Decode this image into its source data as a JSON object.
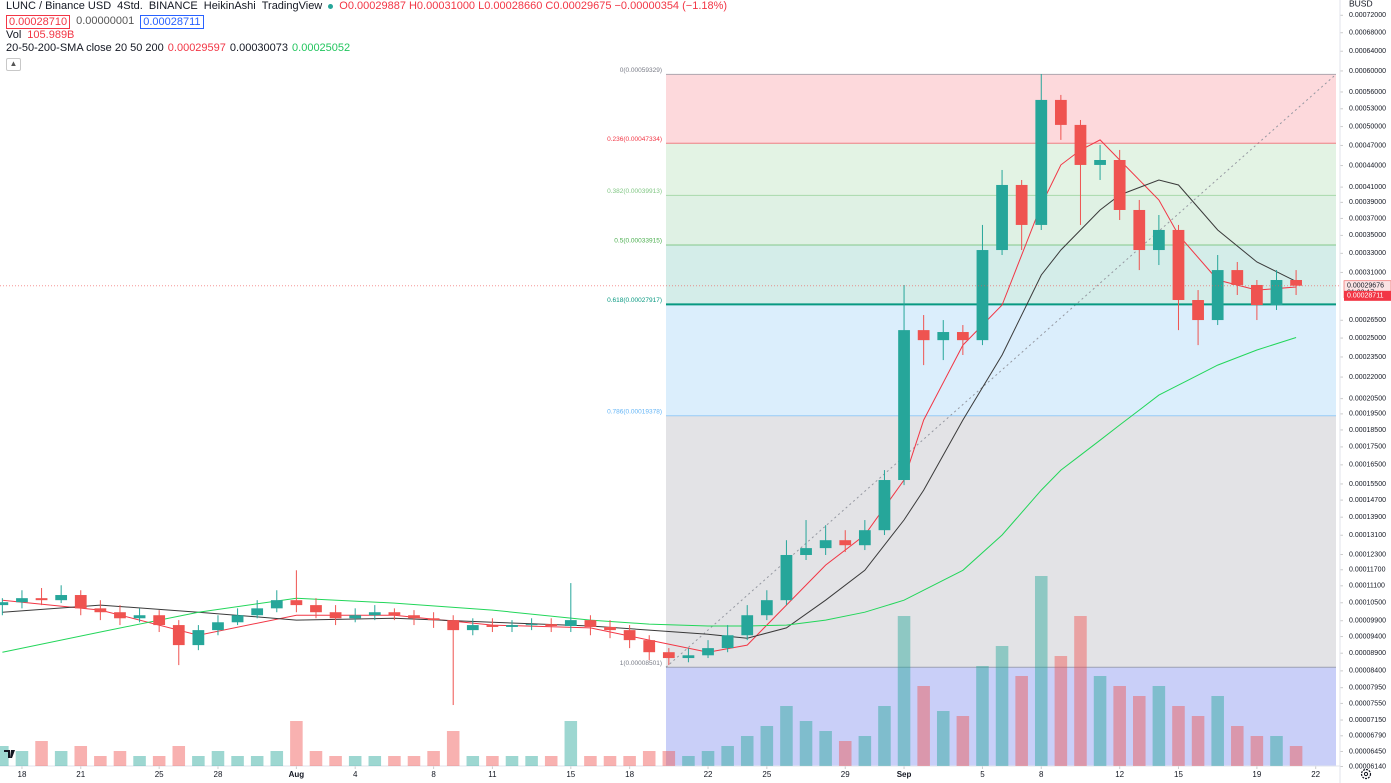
{
  "header": {
    "symbol": "LUNC / Binance USD",
    "interval": "4Std.",
    "exchange": "BINANCE",
    "chart_style": "HeikinAshi",
    "source": "TradingView",
    "ohlc": "O0.00029887 H0.00031000 L0.00028660 C0.00029675 −0.00000354 (−1.18%)",
    "sell": "0.00028710",
    "spread": "0.00000001",
    "buy": "0.00028711",
    "volume_label": "Vol",
    "volume_value": "105.989B",
    "indicator": "20-50-200-SMA close 20 50 200",
    "sma_values": [
      "0.00029597",
      "0.00030073",
      "0.00025052"
    ]
  },
  "chart_data": {
    "type": "candlestick",
    "currency": "BUSD",
    "log_scale": true,
    "grid": false,
    "up_color": "#26a69a",
    "down_color": "#ef5350",
    "ylim": [
      6.15e-05,
      0.000757
    ],
    "yticks": [
      {
        "value": 0.00072,
        "label": "0.00072000"
      },
      {
        "value": 0.00068,
        "label": "0.00068000"
      },
      {
        "value": 0.00064,
        "label": "0.00064000"
      },
      {
        "value": 0.0006,
        "label": "0.00060000"
      },
      {
        "value": 0.00056,
        "label": "0.00056000"
      },
      {
        "value": 0.00053,
        "label": "0.00053000"
      },
      {
        "value": 0.0005,
        "label": "0.00050000"
      },
      {
        "value": 0.00047,
        "label": "0.00047000"
      },
      {
        "value": 0.00044,
        "label": "0.00044000"
      },
      {
        "value": 0.00041,
        "label": "0.00041000"
      },
      {
        "value": 0.00039,
        "label": "0.00039000"
      },
      {
        "value": 0.00037,
        "label": "0.00037000"
      },
      {
        "value": 0.00035,
        "label": "0.00035000"
      },
      {
        "value": 0.00033,
        "label": "0.00033000"
      },
      {
        "value": 0.00031,
        "label": "0.00031000"
      },
      {
        "value": 0.000265,
        "label": "0.00026500"
      },
      {
        "value": 0.00025,
        "label": "0.00025000"
      },
      {
        "value": 0.000235,
        "label": "0.00023500"
      },
      {
        "value": 0.00022,
        "label": "0.00022000"
      },
      {
        "value": 0.000205,
        "label": "0.00020500"
      },
      {
        "value": 0.000195,
        "label": "0.00019500"
      },
      {
        "value": 0.000185,
        "label": "0.00018500"
      },
      {
        "value": 0.000175,
        "label": "0.00017500"
      },
      {
        "value": 0.000165,
        "label": "0.00016500"
      },
      {
        "value": 0.000155,
        "label": "0.00015500"
      },
      {
        "value": 0.000147,
        "label": "0.00014700"
      },
      {
        "value": 0.000139,
        "label": "0.00013900"
      },
      {
        "value": 0.000131,
        "label": "0.00013100"
      },
      {
        "value": 0.000123,
        "label": "0.00012300"
      },
      {
        "value": 0.000117,
        "label": "0.00011700"
      },
      {
        "value": 0.000111,
        "label": "0.00011100"
      },
      {
        "value": 0.000105,
        "label": "0.00010500"
      },
      {
        "value": 9.9e-05,
        "label": "0.00009900"
      },
      {
        "value": 9.4e-05,
        "label": "0.00009400"
      },
      {
        "value": 8.9e-05,
        "label": "0.00008900"
      },
      {
        "value": 8.4e-05,
        "label": "0.00008400"
      },
      {
        "value": 7.95e-05,
        "label": "0.00007950"
      },
      {
        "value": 7.55e-05,
        "label": "0.00007550"
      },
      {
        "value": 7.15e-05,
        "label": "0.00007150"
      },
      {
        "value": 6.79e-05,
        "label": "0.00006790"
      },
      {
        "value": 6.45e-05,
        "label": "0.00006450"
      },
      {
        "value": 6.14e-05,
        "label": "0.00006140"
      }
    ],
    "xlim": [
      -0.12,
      68.24
    ],
    "xticks": [
      {
        "value": 1,
        "label": "18"
      },
      {
        "value": 4,
        "label": "21"
      },
      {
        "value": 8,
        "label": "25"
      },
      {
        "value": 11,
        "label": "28"
      },
      {
        "value": 15,
        "label": "Aug"
      },
      {
        "value": 18,
        "label": "4"
      },
      {
        "value": 22,
        "label": "8"
      },
      {
        "value": 25,
        "label": "11"
      },
      {
        "value": 29,
        "label": "15"
      },
      {
        "value": 32,
        "label": "18"
      },
      {
        "value": 36,
        "label": "22"
      },
      {
        "value": 39,
        "label": "25"
      },
      {
        "value": 43,
        "label": "29"
      },
      {
        "value": 46,
        "label": "Sep"
      },
      {
        "value": 50,
        "label": "5"
      },
      {
        "value": 53,
        "label": "8"
      },
      {
        "value": 57,
        "label": "12"
      },
      {
        "value": 60,
        "label": "15"
      },
      {
        "value": 64,
        "label": "19"
      },
      {
        "value": 67,
        "label": "22"
      }
    ],
    "candles": {
      "open": [
        0.0001042,
        0.0001052,
        0.0001066,
        0.0001059,
        0.0001077,
        0.0001031,
        0.0001018,
        9.98e-05,
        0.0001008,
        9.76e-05,
        9.14e-05,
        9.6e-05,
        9.85e-05,
        0.0001008,
        0.0001031,
        0.0001059,
        0.0001042,
        0.0001018,
        9.98e-05,
        0.0001008,
        0.0001018,
        0.0001008,
        9.98e-05,
        9.92e-05,
        9.6e-05,
        9.76e-05,
        9.7e-05,
        9.76e-05,
        9.79e-05,
        9.73e-05,
        9.92e-05,
        9.7e-05,
        9.6e-05,
        9.29e-05,
        8.93e-05,
        8.76e-05,
        8.84e-05,
        9.05e-05,
        9.44e-05,
        0.0001008,
        0.0001059,
        0.0001228,
        0.0001256,
        0.0001289,
        0.0001268,
        0.0001332,
        0.000157,
        0.0002566,
        0.0002483,
        0.000255,
        0.0002483,
        0.0003336,
        0.0004129,
        0.0003622,
        0.0005456,
        0.0005027,
        0.0004409,
        0.0004481,
        0.0003804,
        0.0003336,
        0.0003563,
        0.0002832,
        0.0002652,
        0.0003124,
        0.0002975,
        0.0002786,
        0.0003024
      ],
      "high": [
        0.0001066,
        0.0001094,
        0.0001102,
        0.0001112,
        0.0001094,
        0.0001059,
        0.0001042,
        0.0001031,
        0.0001025,
        9.92e-05,
        9.76e-05,
        0.0001008,
        0.0001031,
        0.0001059,
        0.0001094,
        0.0001168,
        0.0001066,
        0.0001042,
        0.0001031,
        0.0001042,
        0.0001031,
        0.0001025,
        0.0001018,
        0.0001008,
        9.98e-05,
        9.98e-05,
        9.92e-05,
        9.98e-05,
        9.98e-05,
        0.000112,
        0.0001008,
        9.92e-05,
        9.76e-05,
        9.44e-05,
        9.05e-05,
        9.05e-05,
        9.29e-05,
        9.76e-05,
        0.0001042,
        0.0001094,
        0.0001289,
        0.0001377,
        0.0001354,
        0.0001332,
        0.0001377,
        0.0001622,
        0.0002975,
        0.0002696,
        0.0002652,
        0.0002609,
        0.0003622,
        0.0004337,
        0.0004197,
        0.0005941,
        0.0005546,
        0.0005109,
        0.0004708,
        0.0004631,
        0.0003931,
        0.0003742,
        0.0003622,
        0.0002926,
        0.0003282,
        0.0003208,
        0.0003024,
        0.0003124,
        0.0003124
      ],
      "low": [
        0.0001008,
        0.0001031,
        0.0001042,
        0.0001049,
        0.0001008,
        9.92e-05,
        9.76e-05,
        9.85e-05,
        9.54e-05,
        8.56e-05,
        8.99e-05,
        9.44e-05,
        9.76e-05,
        9.98e-05,
        0.0001018,
        0.0001018,
        9.98e-05,
        9.76e-05,
        9.85e-05,
        9.92e-05,
        9.92e-05,
        9.76e-05,
        9.67e-05,
        7.51e-05,
        9.44e-05,
        9.54e-05,
        9.54e-05,
        9.6e-05,
        9.54e-05,
        9.54e-05,
        9.44e-05,
        9.35e-05,
        9.05e-05,
        8.7e-05,
        8.56e-05,
        8.64e-05,
        8.76e-05,
        8.93e-05,
        9.29e-05,
        9.92e-05,
        0.0001042,
        0.0001208,
        0.0001228,
        0.000124,
        0.0001248,
        0.0001311,
        0.0001544,
        0.0002288,
        0.0002326,
        0.0002365,
        0.0002443,
        0.0003282,
        0.0003336,
        0.0003563,
        0.0004786,
        0.0003622,
        0.0004197,
        0.0003681,
        0.0003124,
        0.0003176,
        0.0002566,
        0.0002443,
        0.0002609,
        0.0002879,
        0.0002652,
        0.0002741,
        0.0002879
      ],
      "close": [
        0.0001052,
        0.0001066,
        0.0001059,
        0.0001077,
        0.0001031,
        0.0001018,
        9.98e-05,
        0.0001008,
        9.76e-05,
        9.14e-05,
        9.6e-05,
        9.85e-05,
        0.0001008,
        0.0001031,
        0.0001059,
        0.0001042,
        0.0001018,
        9.98e-05,
        0.0001008,
        0.0001018,
        0.0001008,
        9.98e-05,
        9.92e-05,
        9.6e-05,
        9.76e-05,
        9.7e-05,
        9.76e-05,
        9.79e-05,
        9.73e-05,
        9.92e-05,
        9.7e-05,
        9.6e-05,
        9.29e-05,
        8.93e-05,
        8.76e-05,
        8.84e-05,
        9.05e-05,
        9.44e-05,
        0.0001008,
        0.0001059,
        0.0001228,
        0.0001256,
        0.0001289,
        0.0001268,
        0.0001332,
        0.000157,
        0.0002566,
        0.0002483,
        0.000255,
        0.0002483,
        0.0003336,
        0.0004129,
        0.0003622,
        0.0005456,
        0.0005027,
        0.0004409,
        0.0004481,
        0.0003804,
        0.0003336,
        0.0003563,
        0.0002832,
        0.0002652,
        0.0003124,
        0.0002975,
        0.0002786,
        0.0003024,
        0.0002968
      ]
    },
    "volume": [
      100,
      75,
      125,
      75,
      100,
      50,
      75,
      50,
      50,
      100,
      50,
      75,
      50,
      50,
      75,
      225,
      75,
      50,
      50,
      50,
      50,
      50,
      75,
      175,
      50,
      50,
      50,
      50,
      50,
      225,
      50,
      50,
      50,
      75,
      75,
      50,
      75,
      100,
      150,
      200,
      300,
      225,
      175,
      125,
      150,
      300,
      750,
      400,
      275,
      250,
      500,
      600,
      450,
      950,
      550,
      750,
      450,
      400,
      350,
      400,
      300,
      250,
      350,
      200,
      150,
      150,
      100
    ],
    "series": [
      {
        "color": "#f23645",
        "x": [
          0,
          5,
          10,
          15,
          20,
          25,
          30,
          33,
          36,
          38,
          40,
          42,
          44,
          46,
          47,
          49,
          51,
          53,
          54,
          55,
          56,
          57,
          59,
          60,
          62,
          64,
          66
        ],
        "values": [
          0.0001059,
          0.0001025,
          9.44e-05,
          0.0001008,
          0.0001008,
          9.76e-05,
          9.67e-05,
          9.29e-05,
          8.93e-05,
          9.14e-05,
          0.0001042,
          0.0001188,
          0.0001311,
          0.000157,
          0.0001911,
          0.0002443,
          0.0002786,
          0.0003867,
          0.0004409,
          0.0004631,
          0.0004786,
          0.0004481,
          0.0003931,
          0.0003505,
          0.0003024,
          0.0002926,
          0.0002955
        ]
      },
      {
        "color": "#3a3a3a",
        "x": [
          0,
          5,
          10,
          15,
          20,
          25,
          30,
          33,
          36,
          38,
          40,
          42,
          44,
          46,
          47,
          49,
          51,
          53,
          54,
          55,
          56,
          57,
          59,
          60,
          62,
          64,
          66
        ],
        "values": [
          0.0001018,
          0.0001042,
          0.0001018,
          9.92e-05,
          9.98e-05,
          9.85e-05,
          9.73e-05,
          9.6e-05,
          9.47e-05,
          9.35e-05,
          9.67e-05,
          0.0001059,
          0.0001168,
          0.0001377,
          0.0001519,
          0.0001911,
          0.0002365,
          0.0003074,
          0.0003336,
          0.0003563,
          0.0003804,
          0.0003995,
          0.0004197,
          0.0004129,
          0.0003563,
          0.0003208,
          0.000301
        ]
      },
      {
        "color": "#22d65a",
        "x": [
          0,
          5,
          10,
          15,
          20,
          25,
          30,
          33,
          36,
          38,
          40,
          42,
          44,
          46,
          47,
          49,
          51,
          53,
          54,
          55,
          56,
          57,
          59,
          60,
          62,
          64,
          66
        ],
        "values": [
          8.93e-05,
          9.54e-05,
          0.0001018,
          0.0001066,
          0.0001049,
          0.0001025,
          9.92e-05,
          9.79e-05,
          9.73e-05,
          9.73e-05,
          9.76e-05,
          9.92e-05,
          0.0001018,
          0.0001059,
          0.0001094,
          0.0001168,
          0.0001311,
          0.0001519,
          0.0001622,
          0.0001703,
          0.0001789,
          0.000188,
          0.0002074,
          0.0002143,
          0.0002288,
          0.0002404,
          0.0002505
        ]
      }
    ],
    "fib_levels": [
      {
        "value": 0.00059329,
        "label": "0(0.00059329)",
        "color": "#787b86"
      },
      {
        "value": 0.00047334,
        "label": "0.236(0.00047334)",
        "color": "#f23645"
      },
      {
        "value": 0.00039913,
        "label": "0.382(0.00039913)",
        "color": "#81c784"
      },
      {
        "value": 0.00033915,
        "label": "0.5(0.00033915)",
        "color": "#4caf50"
      },
      {
        "value": 0.00027917,
        "label": "0.618(0.00027917)",
        "color": "#089981"
      },
      {
        "value": 0.00019378,
        "label": "0.786(0.00019378)",
        "color": "#64b5f6"
      },
      {
        "value": 8.501e-05,
        "label": "1(0.00008501)",
        "color": "#787b86"
      }
    ],
    "last_price": 0.00029676,
    "countdown": "01:23:17",
    "ask_price": 0.00028711
  }
}
